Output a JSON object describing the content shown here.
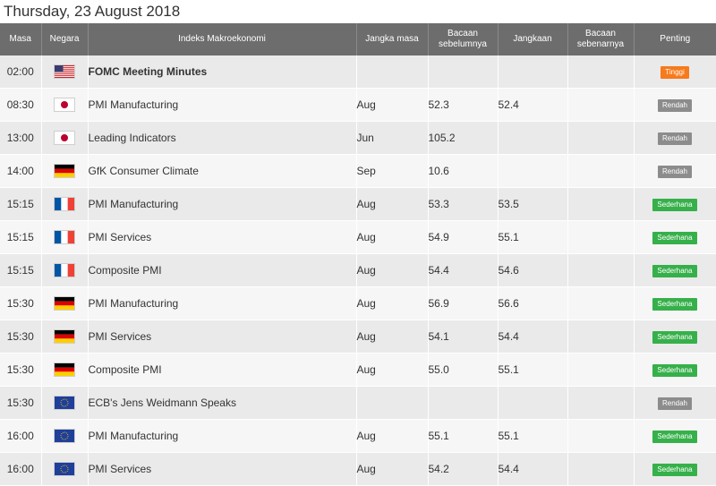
{
  "date_title": "Thursday, 23 August 2018",
  "columns": {
    "time": "Masa",
    "country": "Negara",
    "event": "Indeks Makroekonomi",
    "period": "Jangka masa",
    "previous_l1": "Bacaan",
    "previous_l2": "sebelumnya",
    "forecast": "Jangkaan",
    "actual_l1": "Bacaan",
    "actual_l2": "sebenarnya",
    "importance": "Penting"
  },
  "colors": {
    "header_bg": "#6d6d6d",
    "high": "#f77a1c",
    "low": "#8c8c8c",
    "medium": "#36b04a"
  },
  "rows": [
    {
      "time": "02:00",
      "flag": "us-flag-icon",
      "event": "FOMC Meeting Minutes",
      "period": "",
      "previous": "",
      "forecast": "",
      "actual": "",
      "importance": "Tinggi"
    },
    {
      "time": "08:30",
      "flag": "jp-flag-icon",
      "event": "PMI Manufacturing",
      "period": "Aug",
      "previous": "52.3",
      "forecast": "52.4",
      "actual": "",
      "importance": "Rendah"
    },
    {
      "time": "13:00",
      "flag": "jp-flag-icon",
      "event": "Leading Indicators",
      "period": "Jun",
      "previous": "105.2",
      "forecast": "",
      "actual": "",
      "importance": "Rendah"
    },
    {
      "time": "14:00",
      "flag": "de-flag-icon",
      "event": "GfK Consumer Climate",
      "period": "Sep",
      "previous": "10.6",
      "forecast": "",
      "actual": "",
      "importance": "Rendah"
    },
    {
      "time": "15:15",
      "flag": "fr-flag-icon",
      "event": "PMI Manufacturing",
      "period": "Aug",
      "previous": "53.3",
      "forecast": "53.5",
      "actual": "",
      "importance": "Sederhana"
    },
    {
      "time": "15:15",
      "flag": "fr-flag-icon",
      "event": "PMI Services",
      "period": "Aug",
      "previous": "54.9",
      "forecast": "55.1",
      "actual": "",
      "importance": "Sederhana"
    },
    {
      "time": "15:15",
      "flag": "fr-flag-icon",
      "event": "Composite PMI",
      "period": "Aug",
      "previous": "54.4",
      "forecast": "54.6",
      "actual": "",
      "importance": "Sederhana"
    },
    {
      "time": "15:30",
      "flag": "de-flag-icon",
      "event": "PMI Manufacturing",
      "period": "Aug",
      "previous": "56.9",
      "forecast": "56.6",
      "actual": "",
      "importance": "Sederhana"
    },
    {
      "time": "15:30",
      "flag": "de-flag-icon",
      "event": "PMI Services",
      "period": "Aug",
      "previous": "54.1",
      "forecast": "54.4",
      "actual": "",
      "importance": "Sederhana"
    },
    {
      "time": "15:30",
      "flag": "de-flag-icon",
      "event": "Composite PMI",
      "period": "Aug",
      "previous": "55.0",
      "forecast": "55.1",
      "actual": "",
      "importance": "Sederhana"
    },
    {
      "time": "15:30",
      "flag": "eu-flag-icon",
      "event": "ECB's Jens Weidmann Speaks",
      "period": "",
      "previous": "",
      "forecast": "",
      "actual": "",
      "importance": "Rendah"
    },
    {
      "time": "16:00",
      "flag": "eu-flag-icon",
      "event": "PMI Manufacturing",
      "period": "Aug",
      "previous": "55.1",
      "forecast": "55.1",
      "actual": "",
      "importance": "Sederhana"
    },
    {
      "time": "16:00",
      "flag": "eu-flag-icon",
      "event": "PMI Services",
      "period": "Aug",
      "previous": "54.2",
      "forecast": "54.4",
      "actual": "",
      "importance": "Sederhana"
    }
  ]
}
